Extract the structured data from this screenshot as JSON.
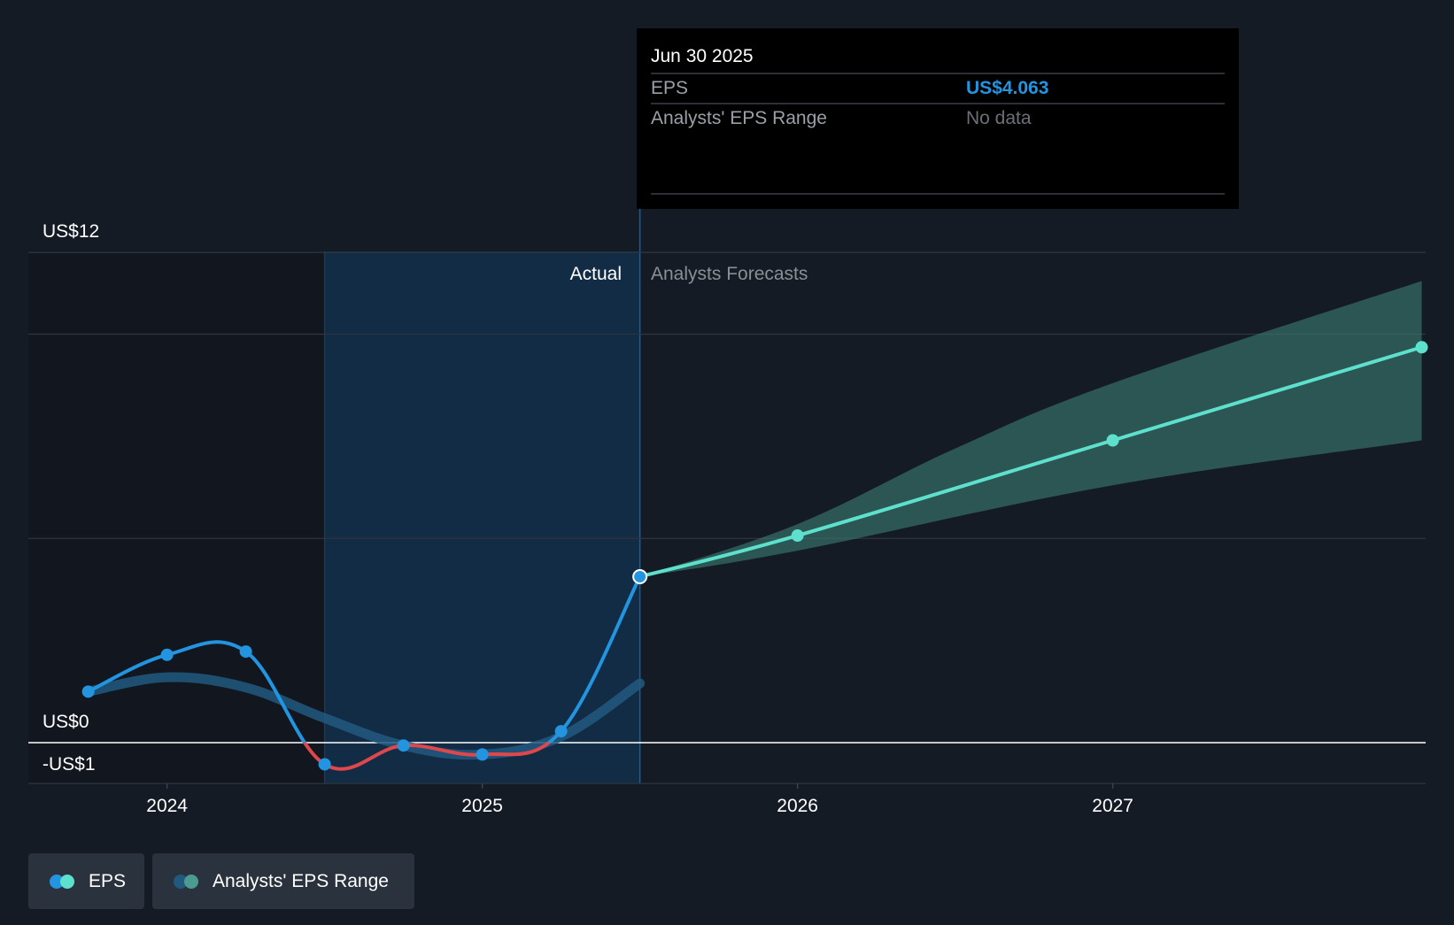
{
  "tooltip": {
    "date": "Jun 30 2025",
    "rows": [
      {
        "label": "EPS",
        "value": "US$4.063"
      },
      {
        "label": "Analysts' EPS Range",
        "value": "No data"
      }
    ]
  },
  "section_labels": {
    "actual": "Actual",
    "forecast": "Analysts Forecasts"
  },
  "legend": [
    {
      "label": "EPS",
      "colors": [
        "#2394df",
        "#5de0cc"
      ]
    },
    {
      "label": "Analysts' EPS Range",
      "colors": [
        "#22597f",
        "#4c9b90"
      ]
    }
  ],
  "colors": {
    "eps_actual": "#2394df",
    "eps_negative": "#e0474c",
    "eps_forecast": "#5de0cc",
    "range_actual": "#22597f",
    "range_forecast": "#3a7b73",
    "highlight_band": "#112c44",
    "background": "#151b24",
    "tooltip_value": "#2394df",
    "tooltip_muted": "#8a8f96"
  },
  "chart_data": {
    "type": "line",
    "title": "",
    "xlabel": "",
    "ylabel": "",
    "x_ticks": [
      {
        "value": 2024.0,
        "label": "2024"
      },
      {
        "value": 2025.0,
        "label": "2025"
      },
      {
        "value": 2026.0,
        "label": "2026"
      },
      {
        "value": 2027.0,
        "label": "2027"
      }
    ],
    "y_labels": [
      {
        "value": 12,
        "label": "US$12"
      },
      {
        "value": 0,
        "label": "US$0"
      },
      {
        "value": -1,
        "label": "-US$1"
      }
    ],
    "y_gridlines": [
      12,
      10,
      5,
      0,
      -1
    ],
    "xlim": [
      2023.56,
      2027.98
    ],
    "ylim": [
      -1,
      12
    ],
    "actual_end": 2025.5,
    "highlight_start": 2024.5,
    "series": [
      {
        "name": "EPS",
        "segment": "actual",
        "points": [
          [
            2023.75,
            1.25
          ],
          [
            2024.0,
            2.15
          ],
          [
            2024.25,
            2.23
          ],
          [
            2024.5,
            -0.53
          ],
          [
            2024.75,
            -0.07
          ],
          [
            2025.0,
            -0.29
          ],
          [
            2025.25,
            0.28
          ],
          [
            2025.5,
            4.063
          ]
        ]
      },
      {
        "name": "EPS",
        "segment": "forecast",
        "points": [
          [
            2025.5,
            4.063
          ],
          [
            2026.0,
            5.07
          ],
          [
            2027.0,
            7.4
          ],
          [
            2027.98,
            9.68
          ]
        ]
      },
      {
        "name": "Analysts' EPS Range",
        "segment": "actual",
        "points": [
          [
            2023.75,
            1.25
          ],
          [
            2024.0,
            1.6
          ],
          [
            2024.25,
            1.35
          ],
          [
            2024.5,
            0.6
          ],
          [
            2024.75,
            -0.07
          ],
          [
            2025.0,
            -0.29
          ],
          [
            2025.25,
            0.15
          ],
          [
            2025.5,
            1.45
          ]
        ]
      },
      {
        "name": "Analysts' EPS Range",
        "segment": "forecast",
        "low": [
          [
            2025.5,
            4.063
          ],
          [
            2026.0,
            4.7
          ],
          [
            2027.0,
            6.3
          ],
          [
            2027.98,
            7.4
          ]
        ],
        "high": [
          [
            2025.5,
            4.063
          ],
          [
            2026.0,
            5.35
          ],
          [
            2026.5,
            7.2
          ],
          [
            2027.0,
            8.8
          ],
          [
            2027.98,
            11.3
          ]
        ]
      }
    ]
  }
}
